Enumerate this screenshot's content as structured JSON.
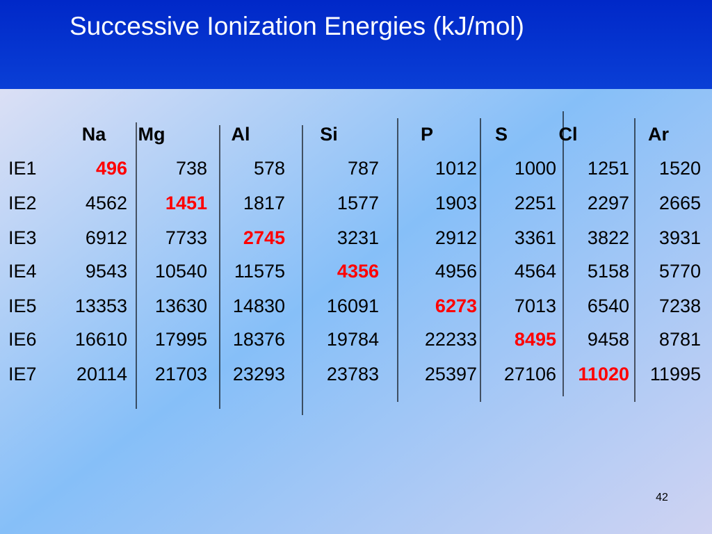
{
  "title": "Successive Ionization Energies (kJ/mol)",
  "table": {
    "columns": [
      "Na",
      "Mg",
      "Al",
      "Si",
      "P",
      "S",
      "Cl",
      "Ar"
    ],
    "rows": [
      {
        "label": "IE1",
        "values": [
          496,
          738,
          578,
          787,
          1012,
          1000,
          1251,
          1520
        ]
      },
      {
        "label": "IE2",
        "values": [
          4562,
          1451,
          1817,
          1577,
          1903,
          2251,
          2297,
          2665
        ]
      },
      {
        "label": "IE3",
        "values": [
          6912,
          7733,
          2745,
          3231,
          2912,
          3361,
          3822,
          3931
        ]
      },
      {
        "label": "IE4",
        "values": [
          9543,
          10540,
          11575,
          4356,
          4956,
          4564,
          5158,
          5770
        ]
      },
      {
        "label": "IE5",
        "values": [
          13353,
          13630,
          14830,
          16091,
          6273,
          7013,
          6540,
          7238
        ]
      },
      {
        "label": "IE6",
        "values": [
          16610,
          17995,
          18376,
          19784,
          22233,
          8495,
          9458,
          8781
        ]
      },
      {
        "label": "IE7",
        "values": [
          20114,
          21703,
          23293,
          23783,
          25397,
          27106,
          11020,
          11995
        ]
      }
    ]
  },
  "page_number": "42"
}
